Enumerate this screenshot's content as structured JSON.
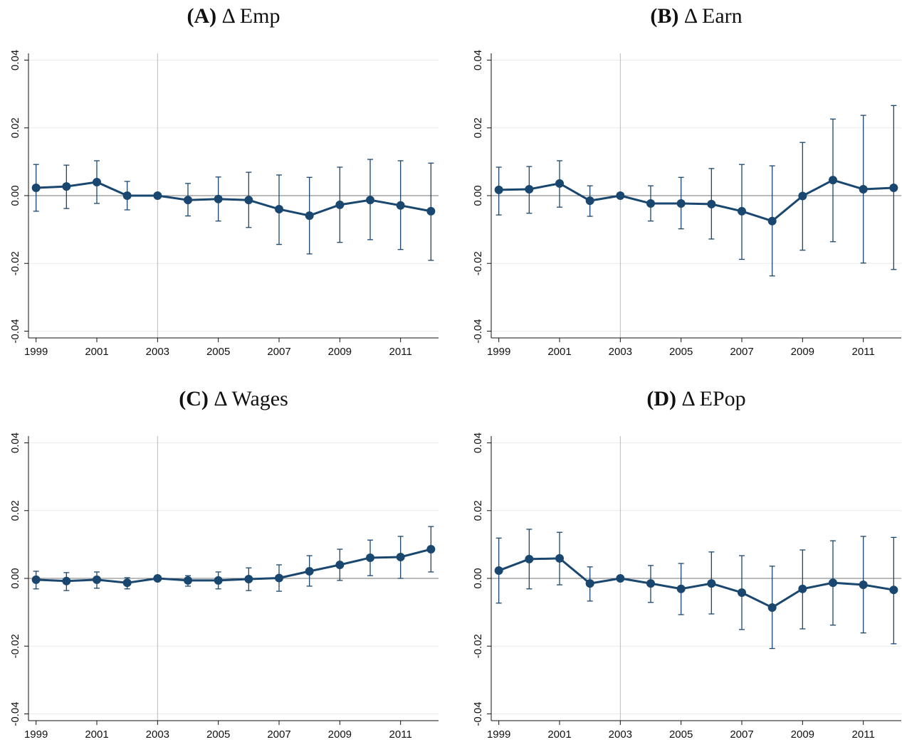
{
  "chart_data": [
    {
      "type": "line",
      "panel": "(A)",
      "title": "Δ Emp",
      "x": [
        1999,
        2000,
        2001,
        2002,
        2003,
        2004,
        2005,
        2006,
        2007,
        2008,
        2009,
        2010,
        2011,
        2012
      ],
      "values": [
        0.0023,
        0.0027,
        0.004,
        0,
        0,
        -0.0013,
        -0.001,
        -0.0013,
        -0.004,
        -0.0059,
        -0.0027,
        -0.0013,
        -0.0029,
        -0.0046
      ],
      "ci_high": [
        0.0092,
        0.009,
        0.0103,
        0.0042,
        0,
        0.0036,
        0.0055,
        0.0069,
        0.0061,
        0.0054,
        0.0084,
        0.0107,
        0.0103,
        0.0096
      ],
      "ci_low": [
        -0.0046,
        -0.0038,
        -0.0023,
        -0.0042,
        0,
        -0.006,
        -0.0075,
        -0.0094,
        -0.0144,
        -0.0172,
        -0.0138,
        -0.013,
        -0.0159,
        -0.0191
      ],
      "color": "#1a476f",
      "xlim": [
        1998.75,
        2012.25
      ],
      "xticks": [
        1999,
        2001,
        2003,
        2005,
        2007,
        2009,
        2011
      ],
      "ylim": [
        -0.042,
        0.042
      ],
      "yticks": [
        0.04,
        0.02,
        {
          "value": 0,
          "label": "0.00"
        },
        -0.02,
        -0.04
      ],
      "grid": true,
      "vline": 2003,
      "hline": 0
    },
    {
      "type": "line",
      "panel": "(B)",
      "title": "Δ Earn",
      "x": [
        1999,
        2000,
        2001,
        2002,
        2003,
        2004,
        2005,
        2006,
        2007,
        2008,
        2009,
        2010,
        2011,
        2012
      ],
      "values": [
        0.0017,
        0.0019,
        0.0036,
        -0.0015,
        0,
        -0.0023,
        -0.0023,
        -0.0025,
        -0.0046,
        -0.0075,
        -0.0001,
        0.0046,
        0.0019,
        0.0023
      ],
      "ci_high": [
        0.0084,
        0.0086,
        0.0103,
        0.0029,
        0,
        0.0029,
        0.0054,
        0.008,
        0.0092,
        0.0088,
        0.0157,
        0.0226,
        0.0237,
        0.0266
      ],
      "ci_low": [
        -0.0057,
        -0.0052,
        -0.0034,
        -0.0061,
        0,
        -0.0075,
        -0.0098,
        -0.0128,
        -0.0188,
        -0.0237,
        -0.0161,
        -0.0136,
        -0.0199,
        -0.0218
      ],
      "color": "#1a476f",
      "xlim": [
        1998.75,
        2012.25
      ],
      "xticks": [
        1999,
        2001,
        2003,
        2005,
        2007,
        2009,
        2011
      ],
      "ylim": [
        -0.042,
        0.042
      ],
      "yticks": [
        0.04,
        0.02,
        {
          "value": 0,
          "label": "0.00"
        },
        -0.02,
        -0.04
      ],
      "grid": true,
      "vline": 2003,
      "hline": 0
    },
    {
      "type": "line",
      "panel": "(C)",
      "title": "Δ Wages",
      "x": [
        1999,
        2000,
        2001,
        2002,
        2003,
        2004,
        2005,
        2006,
        2007,
        2008,
        2009,
        2010,
        2011,
        2012
      ],
      "values": [
        -0.0004,
        -0.0008,
        -0.0004,
        -0.0013,
        0,
        -0.0006,
        -0.0006,
        -0.0002,
        0.0001,
        0.0021,
        0.004,
        0.0061,
        0.0063,
        0.0086
      ],
      "ci_high": [
        0.0021,
        0.0017,
        0.0019,
        0.0002,
        0,
        0.0008,
        0.0019,
        0.0031,
        0.004,
        0.0067,
        0.0086,
        0.0113,
        0.0124,
        0.0153
      ],
      "ci_low": [
        -0.0031,
        -0.0036,
        -0.0029,
        -0.0031,
        0,
        -0.0023,
        -0.0031,
        -0.0036,
        -0.0038,
        -0.0023,
        -0.0006,
        0.0008,
        0,
        0.0019
      ],
      "color": "#1a476f",
      "xlim": [
        1998.75,
        2012.25
      ],
      "xticks": [
        1999,
        2001,
        2003,
        2005,
        2007,
        2009,
        2011
      ],
      "ylim": [
        -0.042,
        0.042
      ],
      "yticks": [
        0.04,
        0.02,
        {
          "value": 0,
          "label": "0.00"
        },
        -0.02,
        -0.04
      ],
      "grid": true,
      "vline": 2003,
      "hline": 0
    },
    {
      "type": "line",
      "panel": "(D)",
      "title": "Δ EPop",
      "x": [
        1999,
        2000,
        2001,
        2002,
        2003,
        2004,
        2005,
        2006,
        2007,
        2008,
        2009,
        2010,
        2011,
        2012
      ],
      "values": [
        0.0023,
        0.0057,
        0.0059,
        -0.0015,
        0,
        -0.0015,
        -0.0031,
        -0.0015,
        -0.0042,
        -0.0086,
        -0.0031,
        -0.0013,
        -0.0019,
        -0.0034
      ],
      "ci_high": [
        0.0119,
        0.0145,
        0.0136,
        0.0034,
        0,
        0.0038,
        0.0044,
        0.0078,
        0.0067,
        0.0036,
        0.0084,
        0.0111,
        0.0124,
        0.0121
      ],
      "ci_low": [
        -0.0073,
        -0.0031,
        -0.0019,
        -0.0067,
        0,
        -0.0071,
        -0.0107,
        -0.0105,
        -0.0151,
        -0.0207,
        -0.0149,
        -0.0138,
        -0.0161,
        -0.0193
      ],
      "color": "#1a476f",
      "xlim": [
        1998.75,
        2012.25
      ],
      "xticks": [
        1999,
        2001,
        2003,
        2005,
        2007,
        2009,
        2011
      ],
      "ylim": [
        -0.042,
        0.042
      ],
      "yticks": [
        0.04,
        0.02,
        {
          "value": 0,
          "label": "0.00"
        },
        -0.02,
        -0.04
      ],
      "grid": true,
      "vline": 2003,
      "hline": 0
    }
  ]
}
